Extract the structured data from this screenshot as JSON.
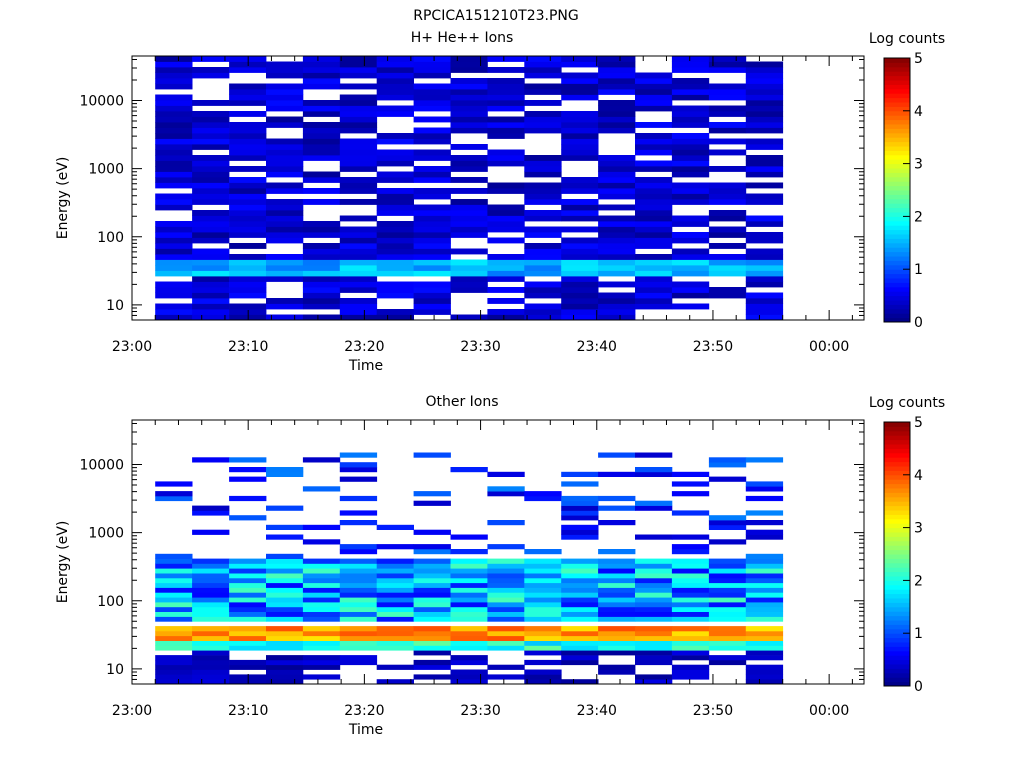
{
  "figure_title": "RPCICA151210T23.PNG",
  "colorbar_label": "Log counts",
  "colorbar_ticks": [
    "0",
    "1",
    "2",
    "3",
    "4",
    "5"
  ],
  "chart_data": [
    {
      "type": "heatmap",
      "title": "H+ He++ Ions",
      "xlabel": "Time",
      "ylabel": "Energy (eV)",
      "x_ticks": [
        "23:00",
        "23:10",
        "23:20",
        "23:30",
        "23:40",
        "23:50",
        "00:00"
      ],
      "xlim": [
        "23:00",
        "00:03"
      ],
      "y_ticks": [
        "10",
        "100",
        "1000",
        "10000"
      ],
      "ylim": [
        6,
        45000
      ],
      "y_scale": "log",
      "colorbar_range": [
        0,
        5
      ],
      "time_range": [
        "23:02",
        "23:56"
      ],
      "energy_range": [
        6,
        45000
      ],
      "summary": {
        "low_energy_band_eV": [
          25,
          45
        ],
        "low_energy_band_log_counts": 1.2,
        "background_log_counts": 0.4
      }
    },
    {
      "type": "heatmap",
      "title": "Other Ions",
      "xlabel": "Time",
      "ylabel": "Energy (eV)",
      "x_ticks": [
        "23:00",
        "23:10",
        "23:20",
        "23:30",
        "23:40",
        "23:50",
        "00:00"
      ],
      "xlim": [
        "23:00",
        "00:03"
      ],
      "y_ticks": [
        "10",
        "100",
        "1000",
        "10000"
      ],
      "ylim": [
        6,
        45000
      ],
      "y_scale": "log",
      "colorbar_range": [
        0,
        5
      ],
      "time_range": [
        "23:02",
        "23:56"
      ],
      "energy_range": [
        6,
        15000
      ],
      "summary": {
        "peak_band_eV": [
          25,
          45
        ],
        "peak_band_log_counts": 3.8,
        "mid_band_eV": [
          50,
          400
        ],
        "mid_band_log_counts": 1.6,
        "high_energy_sparse_log_counts": 0.8
      }
    }
  ]
}
